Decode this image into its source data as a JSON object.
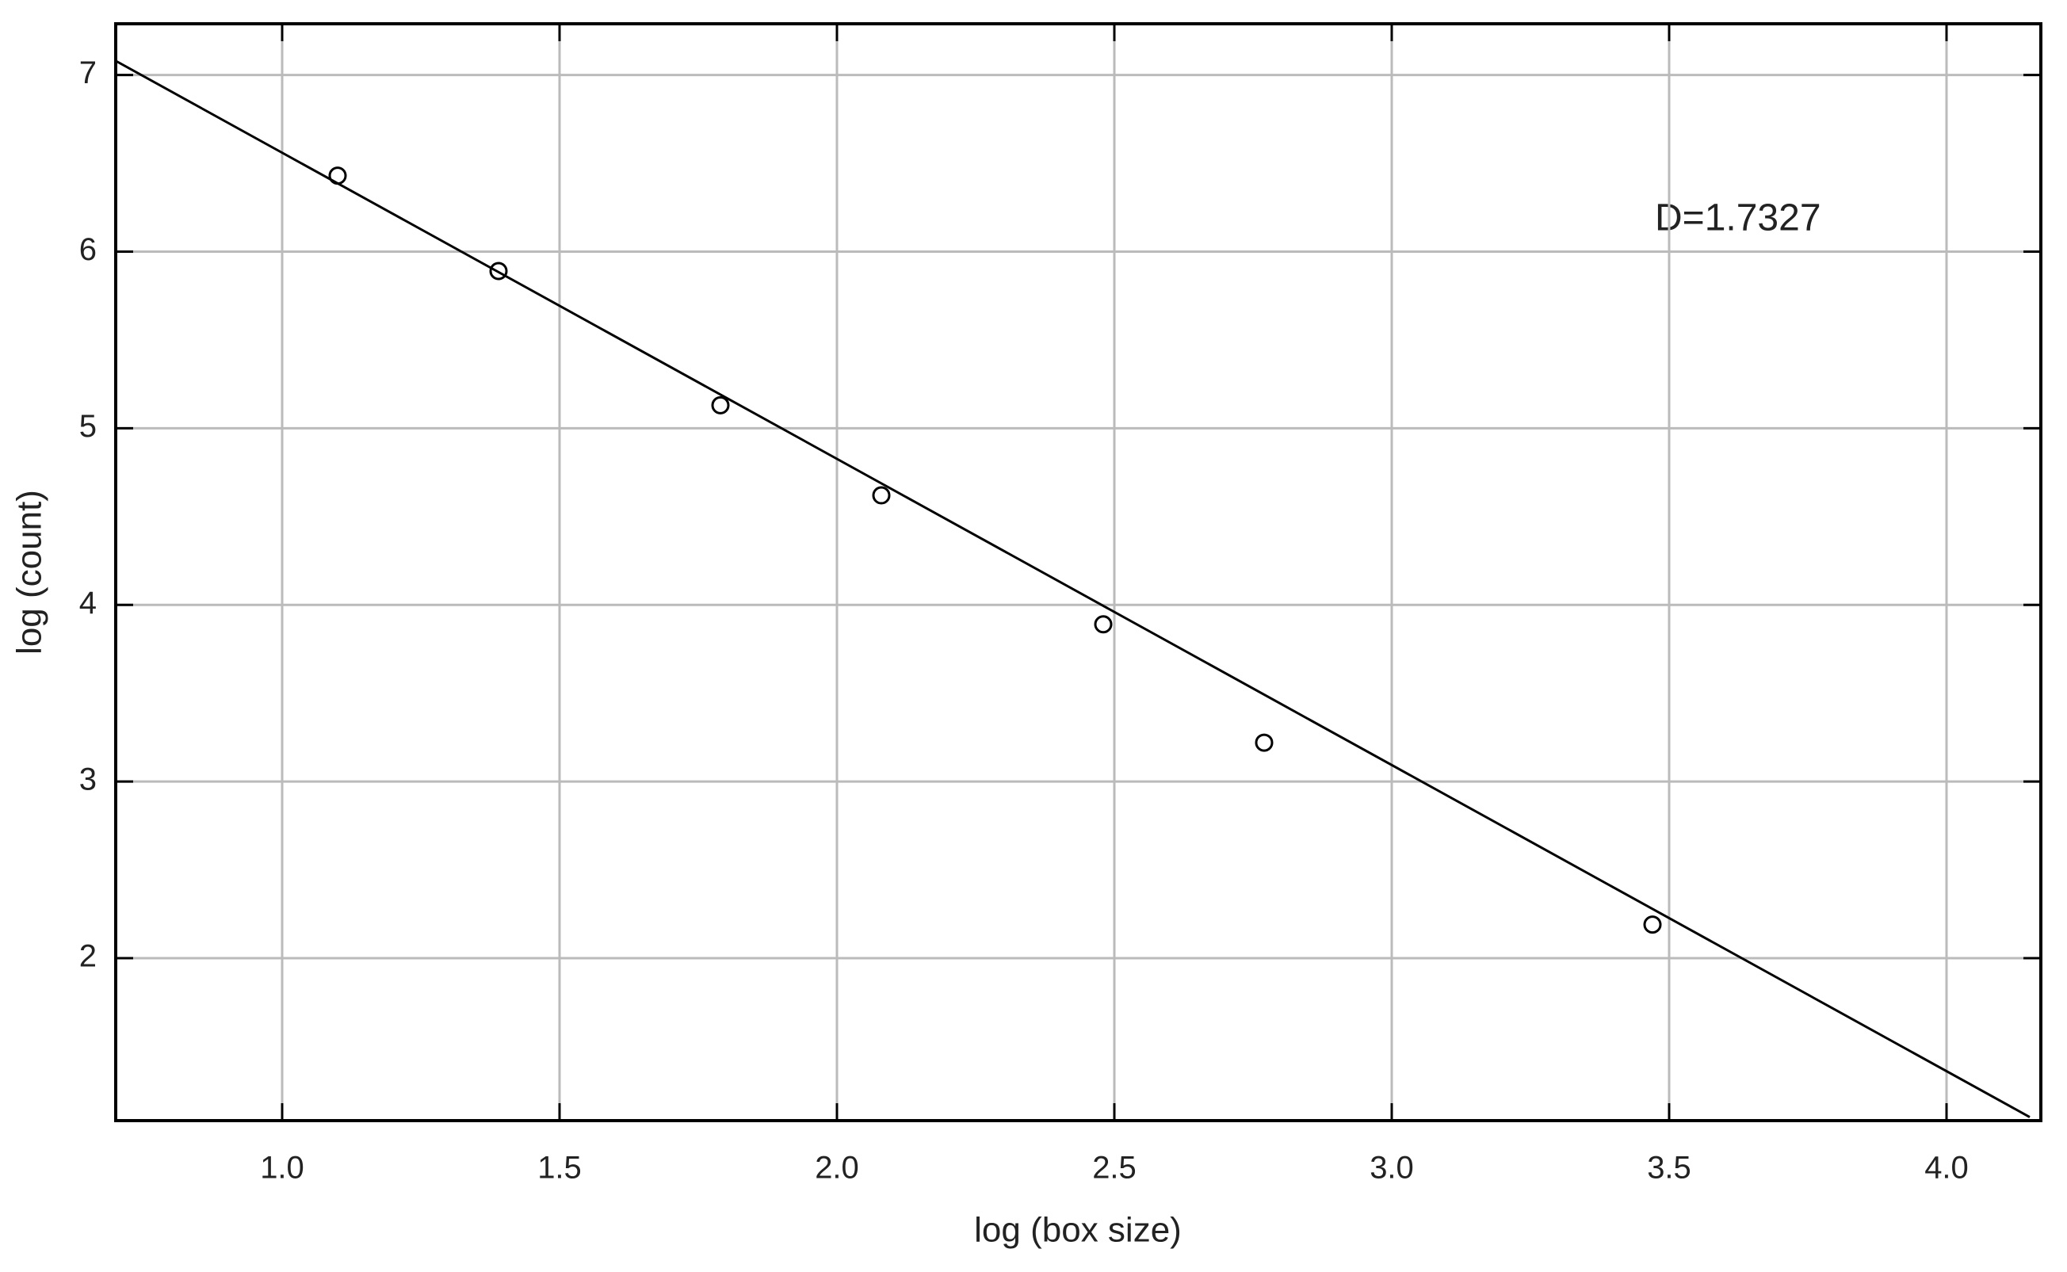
{
  "chart_data": {
    "type": "scatter",
    "xlabel": "log (box size)",
    "ylabel": "log (count)",
    "annotation": "D=1.7327",
    "xlim": [
      0.7,
      4.17
    ],
    "ylim": [
      1.08,
      7.29
    ],
    "xticks": [
      {
        "value": 1,
        "label": "1.0"
      },
      1.5,
      {
        "value": 2,
        "label": "2.0"
      },
      2.5,
      {
        "value": 3,
        "label": "3.0"
      },
      3.5,
      {
        "value": 4,
        "label": "4.0"
      }
    ],
    "yticks": [
      2,
      3,
      4,
      5,
      6,
      7
    ],
    "grid": true,
    "series": [
      {
        "mode": "markers",
        "color": "#000000",
        "x": [
          1.1,
          1.39,
          1.79,
          2.08,
          2.48,
          2.77,
          3.47
        ],
        "values": [
          6.43,
          5.89,
          5.13,
          4.62,
          3.89,
          3.22,
          2.19
        ]
      },
      {
        "mode": "line",
        "color": "#000000",
        "x": [
          0.7,
          4.15
        ],
        "values": [
          7.08,
          1.1
        ]
      }
    ]
  }
}
